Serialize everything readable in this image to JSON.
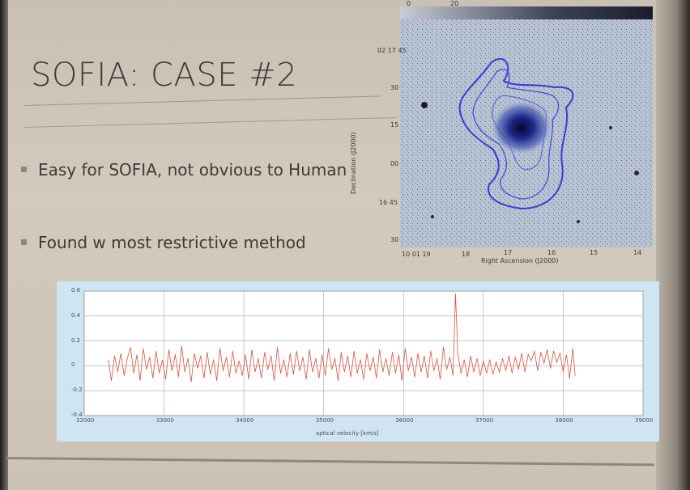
{
  "slide": {
    "title": "SOFIA: CASE #2",
    "bullets": [
      "Easy for SOFIA, not obvious to Human",
      "Found w most restrictive method"
    ]
  },
  "sky_image": {
    "dec_label": "Declination (J2000)",
    "ra_label": "Right Ascension (J2000)",
    "dec_ticks": [
      "02 17 45",
      "30",
      "15",
      "00",
      "16 45",
      "30"
    ],
    "ra_ticks": [
      "10 01 19",
      "18",
      "17",
      "16",
      "15",
      "14"
    ],
    "top_ticks": [
      "0",
      "20"
    ],
    "colors": {
      "background": "#b4bfcf",
      "contour": "#3a3ad8",
      "core": "#0a0a40"
    }
  },
  "chart_data": {
    "type": "line",
    "xlabel": "optical velocity [km/s]",
    "ylabel": "",
    "x_ticks": [
      32000,
      33000,
      34000,
      35000,
      36000,
      37000,
      38000,
      39000
    ],
    "y_ticks": [
      -0.4,
      -0.2,
      0,
      0.2,
      0.4,
      0.6
    ],
    "xlim": [
      32000,
      39000
    ],
    "ylim": [
      -0.4,
      0.6
    ],
    "series": [
      {
        "color": "#d9523f",
        "x_range": [
          32300,
          38150
        ],
        "points": [
          [
            32300,
            0.05
          ],
          [
            32340,
            -0.12
          ],
          [
            32380,
            0.08
          ],
          [
            32420,
            -0.05
          ],
          [
            32460,
            0.1
          ],
          [
            32500,
            -0.08
          ],
          [
            32540,
            0.06
          ],
          [
            32580,
            0.15
          ],
          [
            32620,
            -0.06
          ],
          [
            32660,
            0.09
          ],
          [
            32700,
            -0.12
          ],
          [
            32740,
            0.14
          ],
          [
            32780,
            -0.03
          ],
          [
            32820,
            0.07
          ],
          [
            32860,
            -0.1
          ],
          [
            32900,
            0.12
          ],
          [
            32940,
            -0.06
          ],
          [
            32980,
            0.05
          ],
          [
            33020,
            -0.11
          ],
          [
            33060,
            0.13
          ],
          [
            33100,
            -0.04
          ],
          [
            33140,
            0.09
          ],
          [
            33180,
            -0.09
          ],
          [
            33220,
            0.16
          ],
          [
            33260,
            -0.05
          ],
          [
            33300,
            0.06
          ],
          [
            33340,
            -0.13
          ],
          [
            33380,
            0.1
          ],
          [
            33420,
            -0.02
          ],
          [
            33460,
            0.08
          ],
          [
            33500,
            -0.1
          ],
          [
            33540,
            0.11
          ],
          [
            33580,
            -0.07
          ],
          [
            33620,
            0.05
          ],
          [
            33660,
            -0.12
          ],
          [
            33700,
            0.14
          ],
          [
            33740,
            -0.04
          ],
          [
            33780,
            0.07
          ],
          [
            33820,
            -0.09
          ],
          [
            33860,
            0.12
          ],
          [
            33900,
            -0.06
          ],
          [
            33940,
            0.04
          ],
          [
            33980,
            -0.08
          ],
          [
            34020,
            0.09
          ],
          [
            34060,
            -0.11
          ],
          [
            34100,
            0.13
          ],
          [
            34140,
            -0.05
          ],
          [
            34180,
            0.06
          ],
          [
            34220,
            -0.1
          ],
          [
            34260,
            0.11
          ],
          [
            34300,
            -0.03
          ],
          [
            34340,
            0.08
          ],
          [
            34380,
            -0.12
          ],
          [
            34420,
            0.15
          ],
          [
            34460,
            -0.06
          ],
          [
            34500,
            0.05
          ],
          [
            34540,
            -0.09
          ],
          [
            34580,
            0.1
          ],
          [
            34620,
            -0.07
          ],
          [
            34660,
            0.12
          ],
          [
            34700,
            -0.04
          ],
          [
            34740,
            0.07
          ],
          [
            34780,
            -0.11
          ],
          [
            34820,
            0.13
          ],
          [
            34860,
            -0.05
          ],
          [
            34900,
            0.06
          ],
          [
            34940,
            -0.1
          ],
          [
            34980,
            0.09
          ],
          [
            35020,
            -0.08
          ],
          [
            35060,
            0.14
          ],
          [
            35100,
            -0.03
          ],
          [
            35140,
            0.06
          ],
          [
            35180,
            -0.12
          ],
          [
            35220,
            0.11
          ],
          [
            35260,
            -0.05
          ],
          [
            35300,
            0.08
          ],
          [
            35340,
            -0.09
          ],
          [
            35380,
            0.12
          ],
          [
            35420,
            -0.06
          ],
          [
            35460,
            0.05
          ],
          [
            35500,
            -0.11
          ],
          [
            35540,
            0.1
          ],
          [
            35580,
            -0.04
          ],
          [
            35620,
            0.07
          ],
          [
            35660,
            -0.1
          ],
          [
            35700,
            0.13
          ],
          [
            35740,
            -0.05
          ],
          [
            35780,
            0.06
          ],
          [
            35820,
            -0.08
          ],
          [
            35860,
            0.11
          ],
          [
            35900,
            -0.06
          ],
          [
            35940,
            0.09
          ],
          [
            35980,
            -0.12
          ],
          [
            36020,
            0.14
          ],
          [
            36060,
            -0.04
          ],
          [
            36100,
            0.07
          ],
          [
            36140,
            -0.09
          ],
          [
            36180,
            0.1
          ],
          [
            36220,
            -0.05
          ],
          [
            36260,
            0.08
          ],
          [
            36300,
            -0.1
          ],
          [
            36340,
            0.12
          ],
          [
            36380,
            -0.04
          ],
          [
            36420,
            0.06
          ],
          [
            36460,
            -0.11
          ],
          [
            36500,
            0.15
          ],
          [
            36540,
            -0.03
          ],
          [
            36580,
            0.07
          ],
          [
            36620,
            -0.08
          ],
          [
            36650,
            0.58
          ],
          [
            36680,
            0.1
          ],
          [
            36720,
            -0.06
          ],
          [
            36760,
            0.05
          ],
          [
            36800,
            -0.09
          ],
          [
            36840,
            0.08
          ],
          [
            36880,
            -0.05
          ],
          [
            36920,
            0.06
          ],
          [
            36960,
            -0.08
          ],
          [
            37000,
            0.04
          ],
          [
            37040,
            -0.06
          ],
          [
            37080,
            0.05
          ],
          [
            37120,
            -0.07
          ],
          [
            37160,
            0.03
          ],
          [
            37200,
            -0.05
          ],
          [
            37240,
            0.06
          ],
          [
            37280,
            -0.04
          ],
          [
            37320,
            0.08
          ],
          [
            37360,
            -0.06
          ],
          [
            37400,
            0.07
          ],
          [
            37440,
            -0.03
          ],
          [
            37480,
            0.1
          ],
          [
            37520,
            -0.05
          ],
          [
            37560,
            0.09
          ],
          [
            37600,
            0.04
          ],
          [
            37640,
            0.12
          ],
          [
            37680,
            -0.04
          ],
          [
            37720,
            0.11
          ],
          [
            37760,
            0.02
          ],
          [
            37800,
            0.13
          ],
          [
            37840,
            -0.02
          ],
          [
            37880,
            0.12
          ],
          [
            37920,
            0.03
          ],
          [
            37960,
            0.1
          ],
          [
            38000,
            -0.05
          ],
          [
            38040,
            0.09
          ],
          [
            38080,
            -0.1
          ],
          [
            38120,
            0.14
          ],
          [
            38150,
            -0.08
          ]
        ]
      }
    ]
  }
}
